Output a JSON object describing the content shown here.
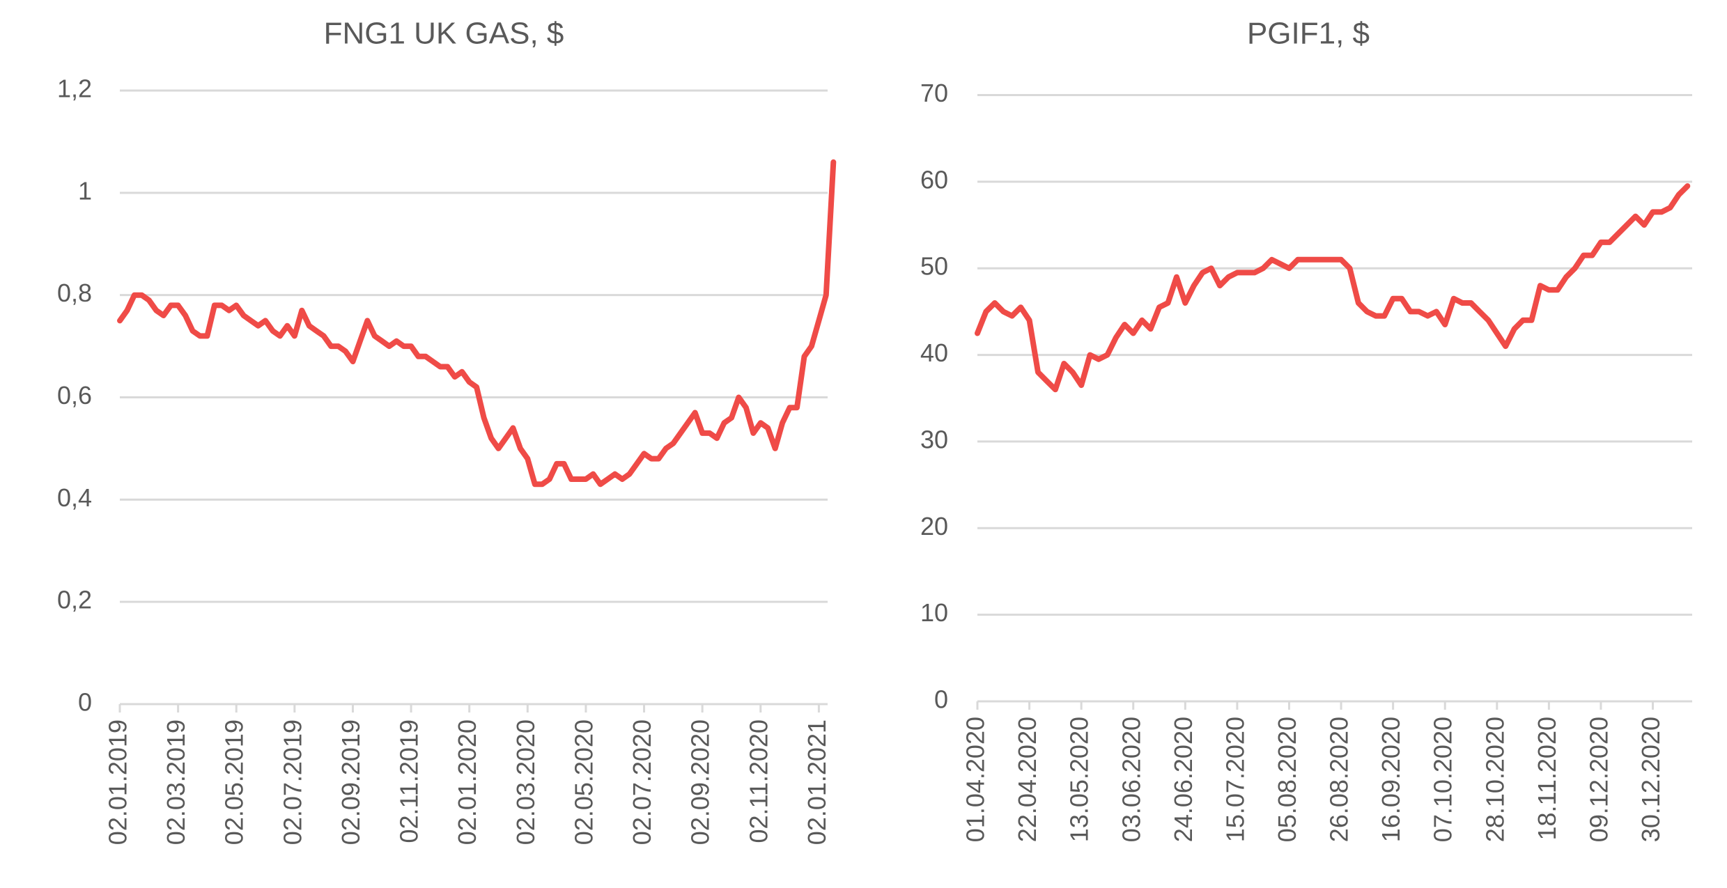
{
  "chart_data": [
    {
      "type": "line",
      "title": "FNG1 UK GAS, $",
      "categories": [
        "02.01.2019",
        null,
        null,
        null,
        null,
        null,
        null,
        null,
        "02.03.2019",
        null,
        null,
        null,
        null,
        null,
        null,
        null,
        "02.05.2019",
        null,
        null,
        null,
        null,
        null,
        null,
        null,
        "02.07.2019",
        null,
        null,
        null,
        null,
        null,
        null,
        null,
        "02.09.2019",
        null,
        null,
        null,
        null,
        null,
        null,
        null,
        "02.11.2019",
        null,
        null,
        null,
        null,
        null,
        null,
        null,
        "02.01.2020",
        null,
        null,
        null,
        null,
        null,
        null,
        null,
        "02.03.2020",
        null,
        null,
        null,
        null,
        null,
        null,
        null,
        "02.05.2020",
        null,
        null,
        null,
        null,
        null,
        null,
        null,
        "02.07.2020",
        null,
        null,
        null,
        null,
        null,
        null,
        null,
        "02.09.2020",
        null,
        null,
        null,
        null,
        null,
        null,
        null,
        "02.11.2020",
        null,
        null,
        null,
        null,
        null,
        null,
        null,
        "02.01.2021",
        null,
        null
      ],
      "series": [
        {
          "name": "FNG1 UK GAS",
          "color": "#ef4b47",
          "values": [
            0.75,
            0.77,
            0.8,
            0.8,
            0.79,
            0.77,
            0.76,
            0.78,
            0.78,
            0.76,
            0.73,
            0.72,
            0.72,
            0.78,
            0.78,
            0.77,
            0.78,
            0.76,
            0.75,
            0.74,
            0.75,
            0.73,
            0.72,
            0.74,
            0.72,
            0.77,
            0.74,
            0.73,
            0.72,
            0.7,
            0.7,
            0.69,
            0.67,
            0.71,
            0.75,
            0.72,
            0.71,
            0.7,
            0.71,
            0.7,
            0.7,
            0.68,
            0.68,
            0.67,
            0.66,
            0.66,
            0.64,
            0.65,
            0.63,
            0.62,
            0.56,
            0.52,
            0.5,
            0.52,
            0.54,
            0.5,
            0.48,
            0.43,
            0.43,
            0.44,
            0.47,
            0.47,
            0.44,
            0.44,
            0.44,
            0.45,
            0.43,
            0.44,
            0.45,
            0.44,
            0.45,
            0.47,
            0.49,
            0.48,
            0.48,
            0.5,
            0.51,
            0.53,
            0.55,
            0.57,
            0.53,
            0.53,
            0.52,
            0.55,
            0.56,
            0.6,
            0.58,
            0.53,
            0.55,
            0.54,
            0.5,
            0.55,
            0.58,
            0.58,
            0.68,
            0.7,
            0.75,
            0.8,
            1.06
          ]
        }
      ],
      "ylim": [
        0,
        1.2
      ],
      "yticks": [
        0,
        {
          "value": 0.2,
          "label": "0,2"
        },
        {
          "value": 0.4,
          "label": "0,4"
        },
        {
          "value": 0.6,
          "label": "0,6"
        },
        {
          "value": 0.8,
          "label": "0,8"
        },
        1,
        {
          "value": 1.2,
          "label": "1,2"
        }
      ],
      "grid": true
    },
    {
      "type": "line",
      "title": "PGIF1, $",
      "categories": [
        "01.04.2020",
        null,
        null,
        null,
        null,
        null,
        "22.04.2020",
        null,
        null,
        null,
        null,
        null,
        "13.05.2020",
        null,
        null,
        null,
        null,
        null,
        "03.06.2020",
        null,
        null,
        null,
        null,
        null,
        "24.06.2020",
        null,
        null,
        null,
        null,
        null,
        "15.07.2020",
        null,
        null,
        null,
        null,
        null,
        "05.08.2020",
        null,
        null,
        null,
        null,
        null,
        "26.08.2020",
        null,
        null,
        null,
        null,
        null,
        "16.09.2020",
        null,
        null,
        null,
        null,
        null,
        "07.10.2020",
        null,
        null,
        null,
        null,
        null,
        "28.10.2020",
        null,
        null,
        null,
        null,
        null,
        "18.11.2020",
        null,
        null,
        null,
        null,
        null,
        "09.12.2020",
        null,
        null,
        null,
        null,
        null,
        "30.12.2020",
        null,
        null,
        null,
        null
      ],
      "series": [
        {
          "name": "PGIF1",
          "color": "#ef4b47",
          "values": [
            42.5,
            45,
            46,
            45,
            44.5,
            45.5,
            44,
            38,
            37,
            36,
            39,
            38,
            36.5,
            40,
            39.5,
            40,
            42,
            43.5,
            42.5,
            44,
            43,
            45.5,
            46,
            49,
            46,
            48,
            49.5,
            50,
            48,
            49,
            49.5,
            49.5,
            49.5,
            50,
            51,
            50.5,
            50,
            51,
            51,
            51,
            51,
            51,
            51,
            50,
            46,
            45,
            44.5,
            44.5,
            46.5,
            46.5,
            45,
            45,
            44.5,
            45,
            43.5,
            46.5,
            46,
            46,
            45,
            44,
            42.5,
            41,
            43,
            44,
            44,
            48,
            47.5,
            47.5,
            49,
            50,
            51.5,
            51.5,
            53,
            53,
            54,
            55,
            56,
            55,
            56.5,
            56.5,
            57,
            58.5,
            59.5
          ]
        }
      ],
      "ylim": [
        0,
        70
      ],
      "yticks": [
        0,
        10,
        20,
        30,
        40,
        50,
        60,
        70
      ],
      "grid": true
    }
  ]
}
